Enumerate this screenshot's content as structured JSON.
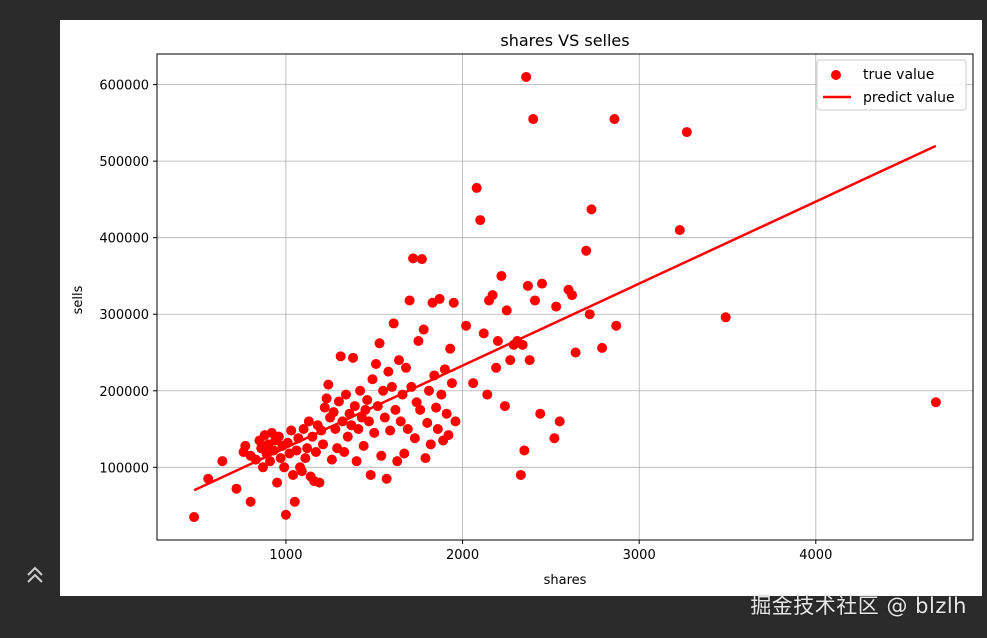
{
  "theme": {
    "background": "#2b2b2b",
    "panel": "#ffffff",
    "series_color": "#ff0000"
  },
  "sidebar": {
    "collapse_icon": "double-chevron-up-icon"
  },
  "watermark": "掘金技术社区 @ blzlh",
  "chart_data": {
    "type": "scatter",
    "title": "shares VS selles",
    "xlabel": "shares",
    "ylabel": "sells",
    "xlim": [
      270,
      4890
    ],
    "ylim": [
      5000,
      640000
    ],
    "xticks": [
      1000,
      2000,
      3000,
      4000
    ],
    "xtick_labels": [
      "1000",
      "2000",
      "3000",
      "4000"
    ],
    "yticks": [
      100000,
      200000,
      300000,
      400000,
      500000,
      600000
    ],
    "ytick_labels": [
      "100000",
      "200000",
      "300000",
      "400000",
      "500000",
      "600000"
    ],
    "grid": true,
    "legend": {
      "position": "top-right",
      "entries": [
        "true value",
        "predict value"
      ]
    },
    "series": [
      {
        "name": "true value",
        "type": "scatter",
        "color": "#ff0000",
        "points": [
          [
            480,
            35000
          ],
          [
            560,
            85000
          ],
          [
            640,
            108000
          ],
          [
            720,
            72000
          ],
          [
            760,
            120000
          ],
          [
            770,
            128000
          ],
          [
            800,
            55000
          ],
          [
            800,
            115000
          ],
          [
            830,
            110000
          ],
          [
            850,
            135000
          ],
          [
            860,
            125000
          ],
          [
            870,
            100000
          ],
          [
            880,
            142000
          ],
          [
            890,
            118000
          ],
          [
            900,
            130000
          ],
          [
            910,
            108000
          ],
          [
            920,
            145000
          ],
          [
            930,
            122000
          ],
          [
            940,
            135000
          ],
          [
            950,
            80000
          ],
          [
            960,
            140000
          ],
          [
            970,
            112000
          ],
          [
            980,
            128000
          ],
          [
            990,
            100000
          ],
          [
            1000,
            38000
          ],
          [
            1010,
            132000
          ],
          [
            1020,
            118000
          ],
          [
            1030,
            148000
          ],
          [
            1040,
            90000
          ],
          [
            1050,
            55000
          ],
          [
            1060,
            122000
          ],
          [
            1070,
            138000
          ],
          [
            1080,
            100000
          ],
          [
            1090,
            95000
          ],
          [
            1100,
            150000
          ],
          [
            1110,
            112000
          ],
          [
            1120,
            125000
          ],
          [
            1130,
            160000
          ],
          [
            1140,
            88000
          ],
          [
            1150,
            140000
          ],
          [
            1160,
            82000
          ],
          [
            1170,
            120000
          ],
          [
            1180,
            155000
          ],
          [
            1190,
            80000
          ],
          [
            1200,
            148000
          ],
          [
            1210,
            130000
          ],
          [
            1220,
            178000
          ],
          [
            1230,
            190000
          ],
          [
            1240,
            208000
          ],
          [
            1250,
            165000
          ],
          [
            1260,
            110000
          ],
          [
            1270,
            172000
          ],
          [
            1280,
            150000
          ],
          [
            1290,
            125000
          ],
          [
            1300,
            186000
          ],
          [
            1310,
            245000
          ],
          [
            1320,
            160000
          ],
          [
            1330,
            120000
          ],
          [
            1340,
            195000
          ],
          [
            1350,
            140000
          ],
          [
            1360,
            170000
          ],
          [
            1370,
            155000
          ],
          [
            1380,
            243000
          ],
          [
            1390,
            180000
          ],
          [
            1400,
            108000
          ],
          [
            1410,
            150000
          ],
          [
            1420,
            200000
          ],
          [
            1430,
            165000
          ],
          [
            1440,
            128000
          ],
          [
            1450,
            175000
          ],
          [
            1460,
            188000
          ],
          [
            1470,
            160000
          ],
          [
            1480,
            90000
          ],
          [
            1490,
            215000
          ],
          [
            1500,
            145000
          ],
          [
            1510,
            235000
          ],
          [
            1520,
            180000
          ],
          [
            1530,
            262000
          ],
          [
            1540,
            115000
          ],
          [
            1550,
            200000
          ],
          [
            1560,
            165000
          ],
          [
            1570,
            85000
          ],
          [
            1580,
            225000
          ],
          [
            1590,
            148000
          ],
          [
            1600,
            205000
          ],
          [
            1610,
            288000
          ],
          [
            1620,
            175000
          ],
          [
            1630,
            108000
          ],
          [
            1640,
            240000
          ],
          [
            1650,
            160000
          ],
          [
            1660,
            195000
          ],
          [
            1670,
            118000
          ],
          [
            1680,
            230000
          ],
          [
            1690,
            150000
          ],
          [
            1700,
            318000
          ],
          [
            1710,
            205000
          ],
          [
            1720,
            373000
          ],
          [
            1730,
            138000
          ],
          [
            1740,
            185000
          ],
          [
            1750,
            265000
          ],
          [
            1760,
            175000
          ],
          [
            1770,
            372000
          ],
          [
            1780,
            280000
          ],
          [
            1790,
            112000
          ],
          [
            1800,
            158000
          ],
          [
            1810,
            200000
          ],
          [
            1820,
            130000
          ],
          [
            1830,
            315000
          ],
          [
            1840,
            220000
          ],
          [
            1850,
            178000
          ],
          [
            1860,
            150000
          ],
          [
            1870,
            320000
          ],
          [
            1880,
            195000
          ],
          [
            1890,
            135000
          ],
          [
            1900,
            228000
          ],
          [
            1910,
            170000
          ],
          [
            1920,
            142000
          ],
          [
            1930,
            255000
          ],
          [
            1940,
            210000
          ],
          [
            1950,
            315000
          ],
          [
            1960,
            160000
          ],
          [
            2020,
            285000
          ],
          [
            2060,
            210000
          ],
          [
            2080,
            465000
          ],
          [
            2100,
            423000
          ],
          [
            2120,
            275000
          ],
          [
            2140,
            195000
          ],
          [
            2150,
            318000
          ],
          [
            2170,
            325000
          ],
          [
            2190,
            230000
          ],
          [
            2200,
            265000
          ],
          [
            2220,
            350000
          ],
          [
            2240,
            180000
          ],
          [
            2250,
            305000
          ],
          [
            2270,
            240000
          ],
          [
            2290,
            260000
          ],
          [
            2310,
            265000
          ],
          [
            2330,
            90000
          ],
          [
            2340,
            260000
          ],
          [
            2350,
            122000
          ],
          [
            2360,
            610000
          ],
          [
            2370,
            337000
          ],
          [
            2380,
            240000
          ],
          [
            2400,
            555000
          ],
          [
            2410,
            318000
          ],
          [
            2440,
            170000
          ],
          [
            2450,
            340000
          ],
          [
            2520,
            138000
          ],
          [
            2530,
            310000
          ],
          [
            2550,
            160000
          ],
          [
            2600,
            332000
          ],
          [
            2620,
            325000
          ],
          [
            2640,
            250000
          ],
          [
            2700,
            383000
          ],
          [
            2720,
            300000
          ],
          [
            2730,
            437000
          ],
          [
            2790,
            256000
          ],
          [
            2860,
            555000
          ],
          [
            2870,
            285000
          ],
          [
            3230,
            410000
          ],
          [
            3270,
            538000
          ],
          [
            3490,
            296000
          ],
          [
            4680,
            185000
          ]
        ]
      },
      {
        "name": "predict value",
        "type": "line",
        "color": "#ff0000",
        "points": [
          [
            480,
            70000
          ],
          [
            4680,
            520000
          ]
        ]
      }
    ]
  }
}
